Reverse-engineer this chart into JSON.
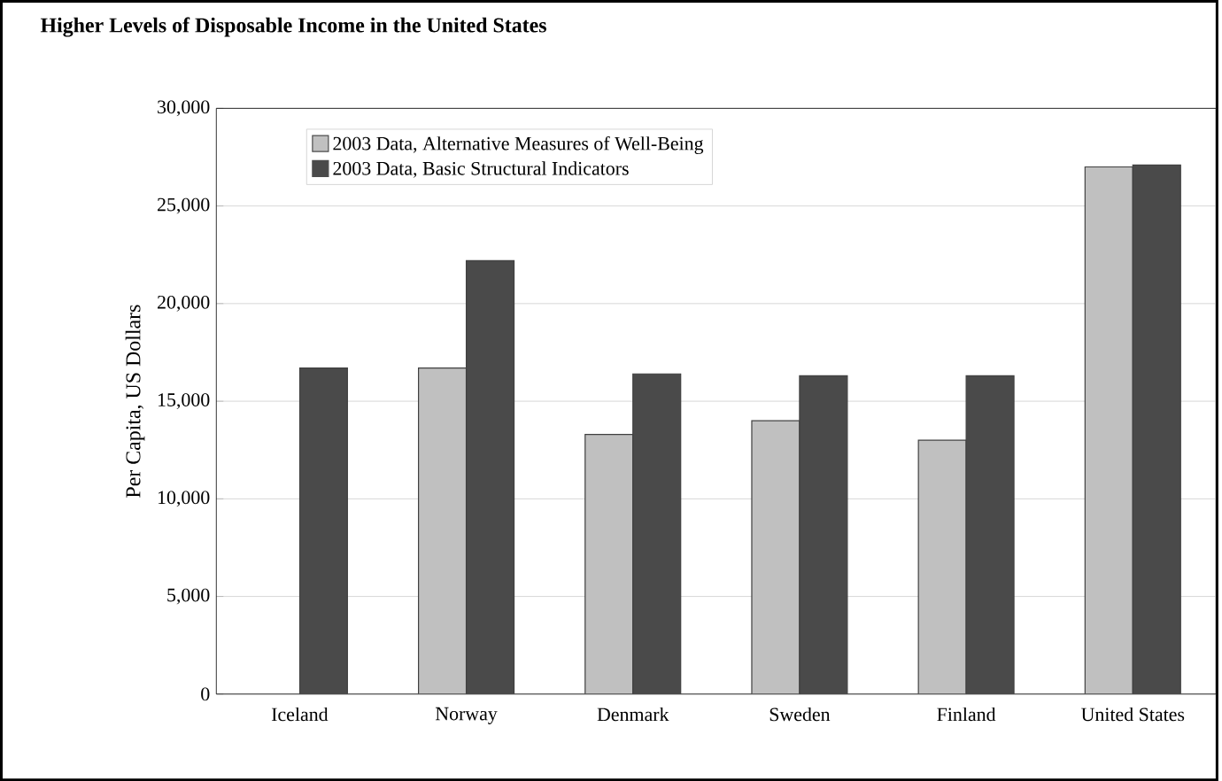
{
  "chart_data": {
    "type": "bar",
    "title": "Higher Levels of Disposable Income in the United States",
    "ylabel": "Per Capita, US Dollars",
    "categories": [
      "Iceland",
      "Norway",
      "Denmark",
      "Sweden",
      "Finland",
      "United States"
    ],
    "series": [
      {
        "name": "2003 Data, Alternative Measures of Well-Being",
        "color": "#c0c0c0",
        "values": [
          null,
          16700,
          13300,
          14000,
          13000,
          27000
        ]
      },
      {
        "name": "2003 Data, Basic Structural Indicators",
        "color": "#4a4a4a",
        "values": [
          16700,
          22200,
          16400,
          16300,
          16300,
          27100
        ]
      }
    ],
    "ylim": [
      0,
      30000
    ],
    "yticks": [
      {
        "value": 0,
        "label": "0"
      },
      {
        "value": 5000,
        "label": "5,000"
      },
      {
        "value": 10000,
        "label": "10,000"
      },
      {
        "value": 15000,
        "label": "15,000"
      },
      {
        "value": 20000,
        "label": "20,000"
      },
      {
        "value": 25000,
        "label": "25,000"
      },
      {
        "value": 30000,
        "label": "30,000"
      }
    ],
    "grid": "y",
    "legend": "top left"
  }
}
